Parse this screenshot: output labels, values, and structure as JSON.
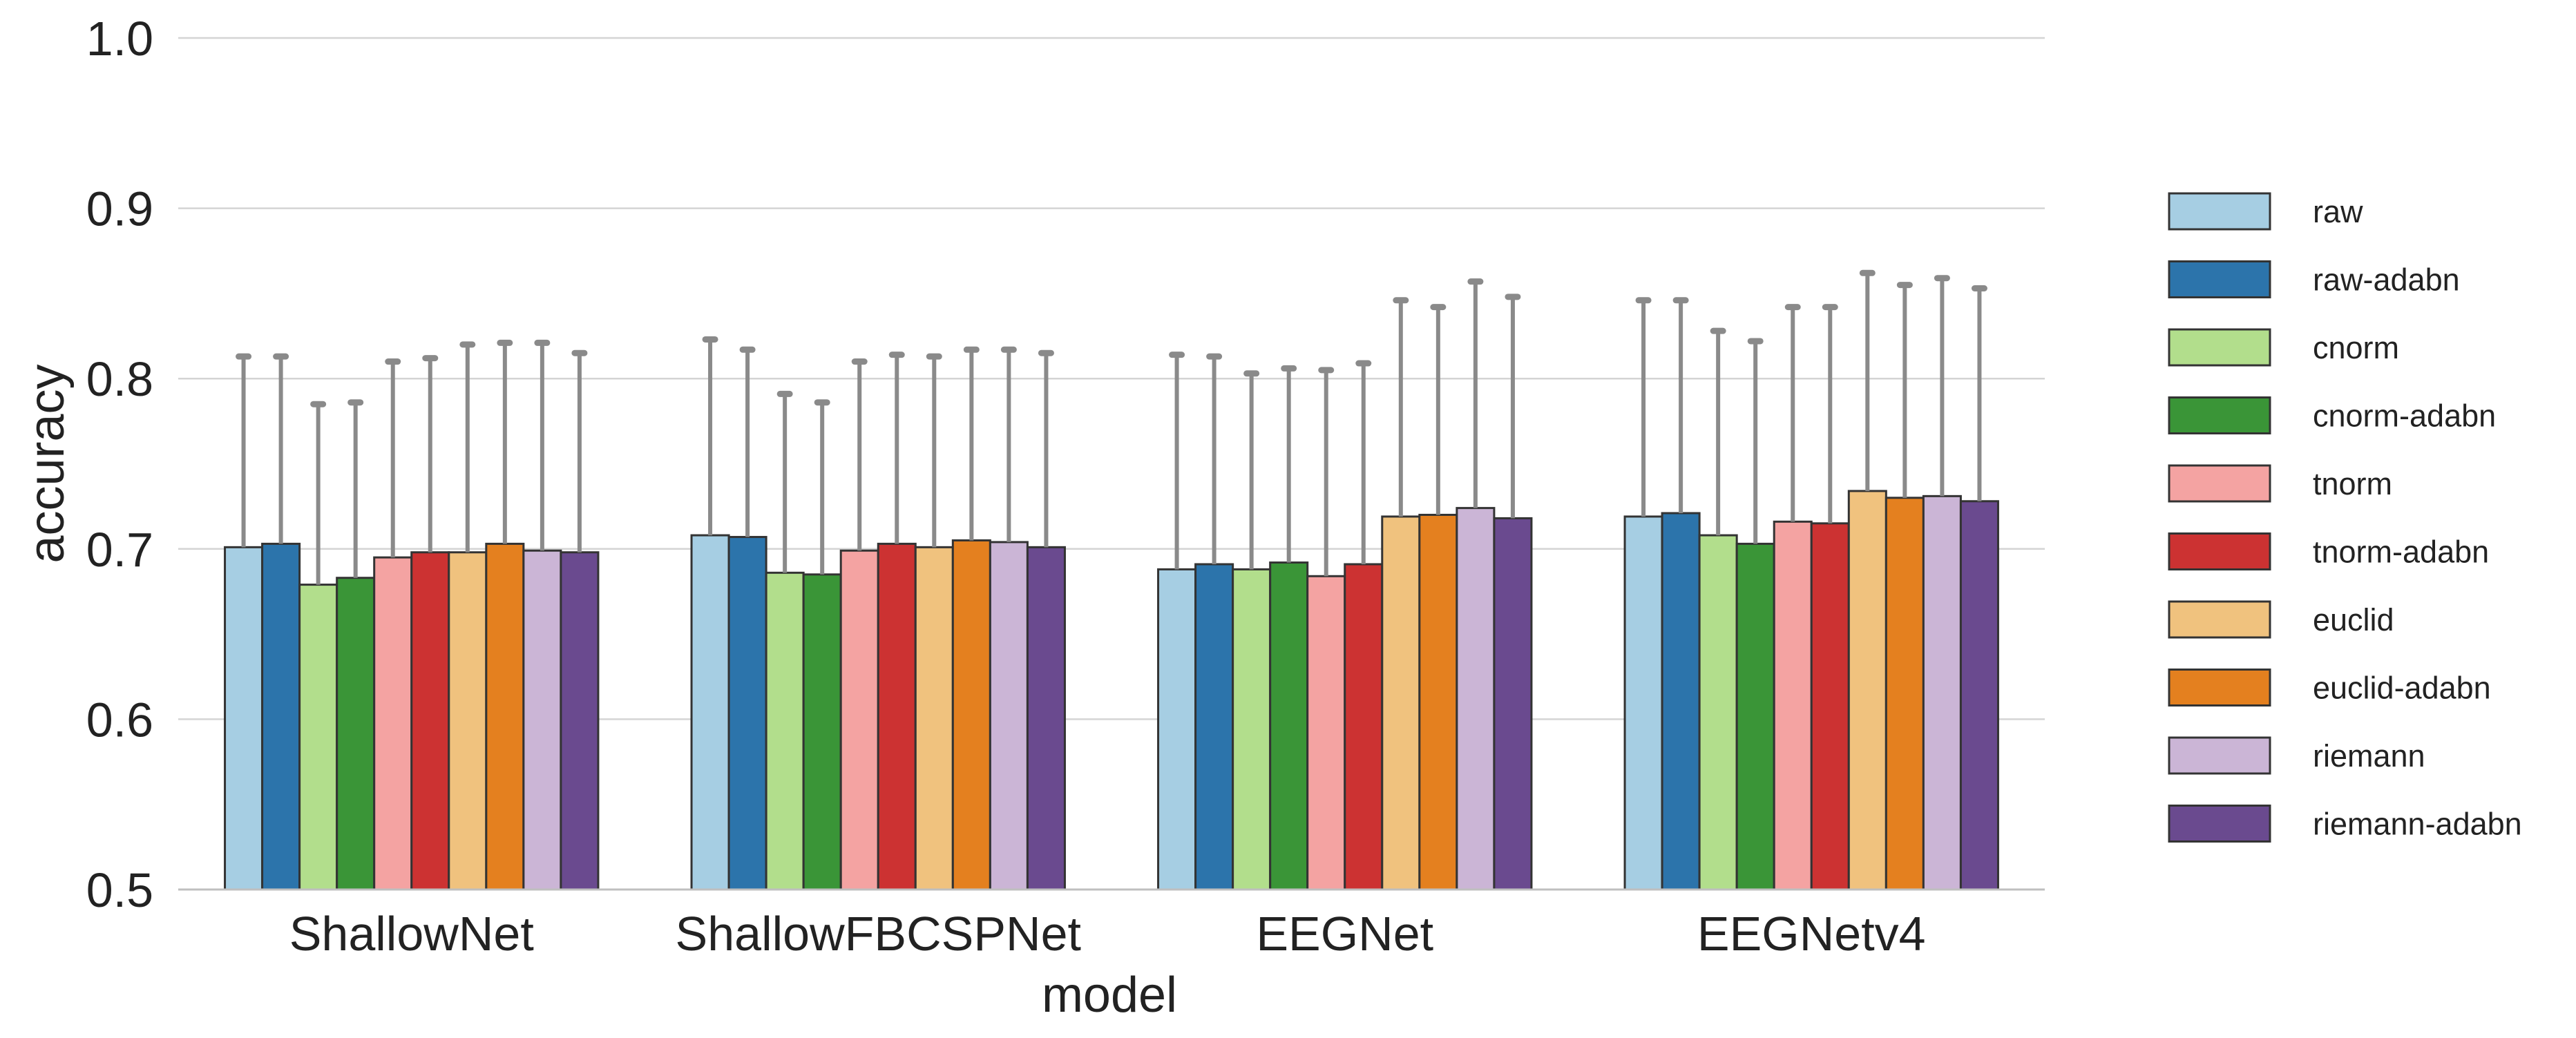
{
  "chart_data": {
    "type": "bar",
    "title": "",
    "xlabel": "model",
    "ylabel": "accuracy",
    "ylim": [
      0.5,
      1.0
    ],
    "yticks": [
      "0.5",
      "0.6",
      "0.7",
      "0.8",
      "0.9",
      "1.0"
    ],
    "grid": "horizontal",
    "legend_position": "right",
    "categories": [
      "ShallowNet",
      "ShallowFBCSPNet",
      "EEGNet",
      "EEGNetv4"
    ],
    "series": [
      {
        "name": "raw",
        "color": "#a6cee3",
        "values": [
          0.701,
          0.708,
          0.688,
          0.719
        ],
        "err_upper": [
          0.813,
          0.823,
          0.814,
          0.846
        ]
      },
      {
        "name": "raw-adabn",
        "color": "#2c74ab",
        "values": [
          0.703,
          0.707,
          0.691,
          0.721
        ],
        "err_upper": [
          0.813,
          0.817,
          0.813,
          0.846
        ]
      },
      {
        "name": "cnorm",
        "color": "#b2de8c",
        "values": [
          0.679,
          0.686,
          0.688,
          0.708
        ],
        "err_upper": [
          0.785,
          0.791,
          0.803,
          0.828
        ]
      },
      {
        "name": "cnorm-adabn",
        "color": "#3a9537",
        "values": [
          0.683,
          0.685,
          0.692,
          0.703
        ],
        "err_upper": [
          0.786,
          0.786,
          0.806,
          0.822
        ]
      },
      {
        "name": "tnorm",
        "color": "#f4a3a2",
        "values": [
          0.695,
          0.699,
          0.684,
          0.716
        ],
        "err_upper": [
          0.81,
          0.81,
          0.805,
          0.842
        ]
      },
      {
        "name": "tnorm-adabn",
        "color": "#cc3232",
        "values": [
          0.698,
          0.703,
          0.691,
          0.715
        ],
        "err_upper": [
          0.812,
          0.814,
          0.809,
          0.842
        ]
      },
      {
        "name": "euclid",
        "color": "#f0c27e",
        "values": [
          0.698,
          0.701,
          0.719,
          0.734
        ],
        "err_upper": [
          0.82,
          0.813,
          0.846,
          0.862
        ]
      },
      {
        "name": "euclid-adabn",
        "color": "#e4801f",
        "values": [
          0.703,
          0.705,
          0.72,
          0.73
        ],
        "err_upper": [
          0.821,
          0.817,
          0.842,
          0.855
        ]
      },
      {
        "name": "riemann",
        "color": "#cbb5d6",
        "values": [
          0.699,
          0.704,
          0.724,
          0.731
        ],
        "err_upper": [
          0.821,
          0.817,
          0.857,
          0.859
        ]
      },
      {
        "name": "riemann-adabn",
        "color": "#6a4a8f",
        "values": [
          0.698,
          0.701,
          0.718,
          0.728
        ],
        "err_upper": [
          0.815,
          0.815,
          0.848,
          0.853
        ]
      }
    ]
  }
}
